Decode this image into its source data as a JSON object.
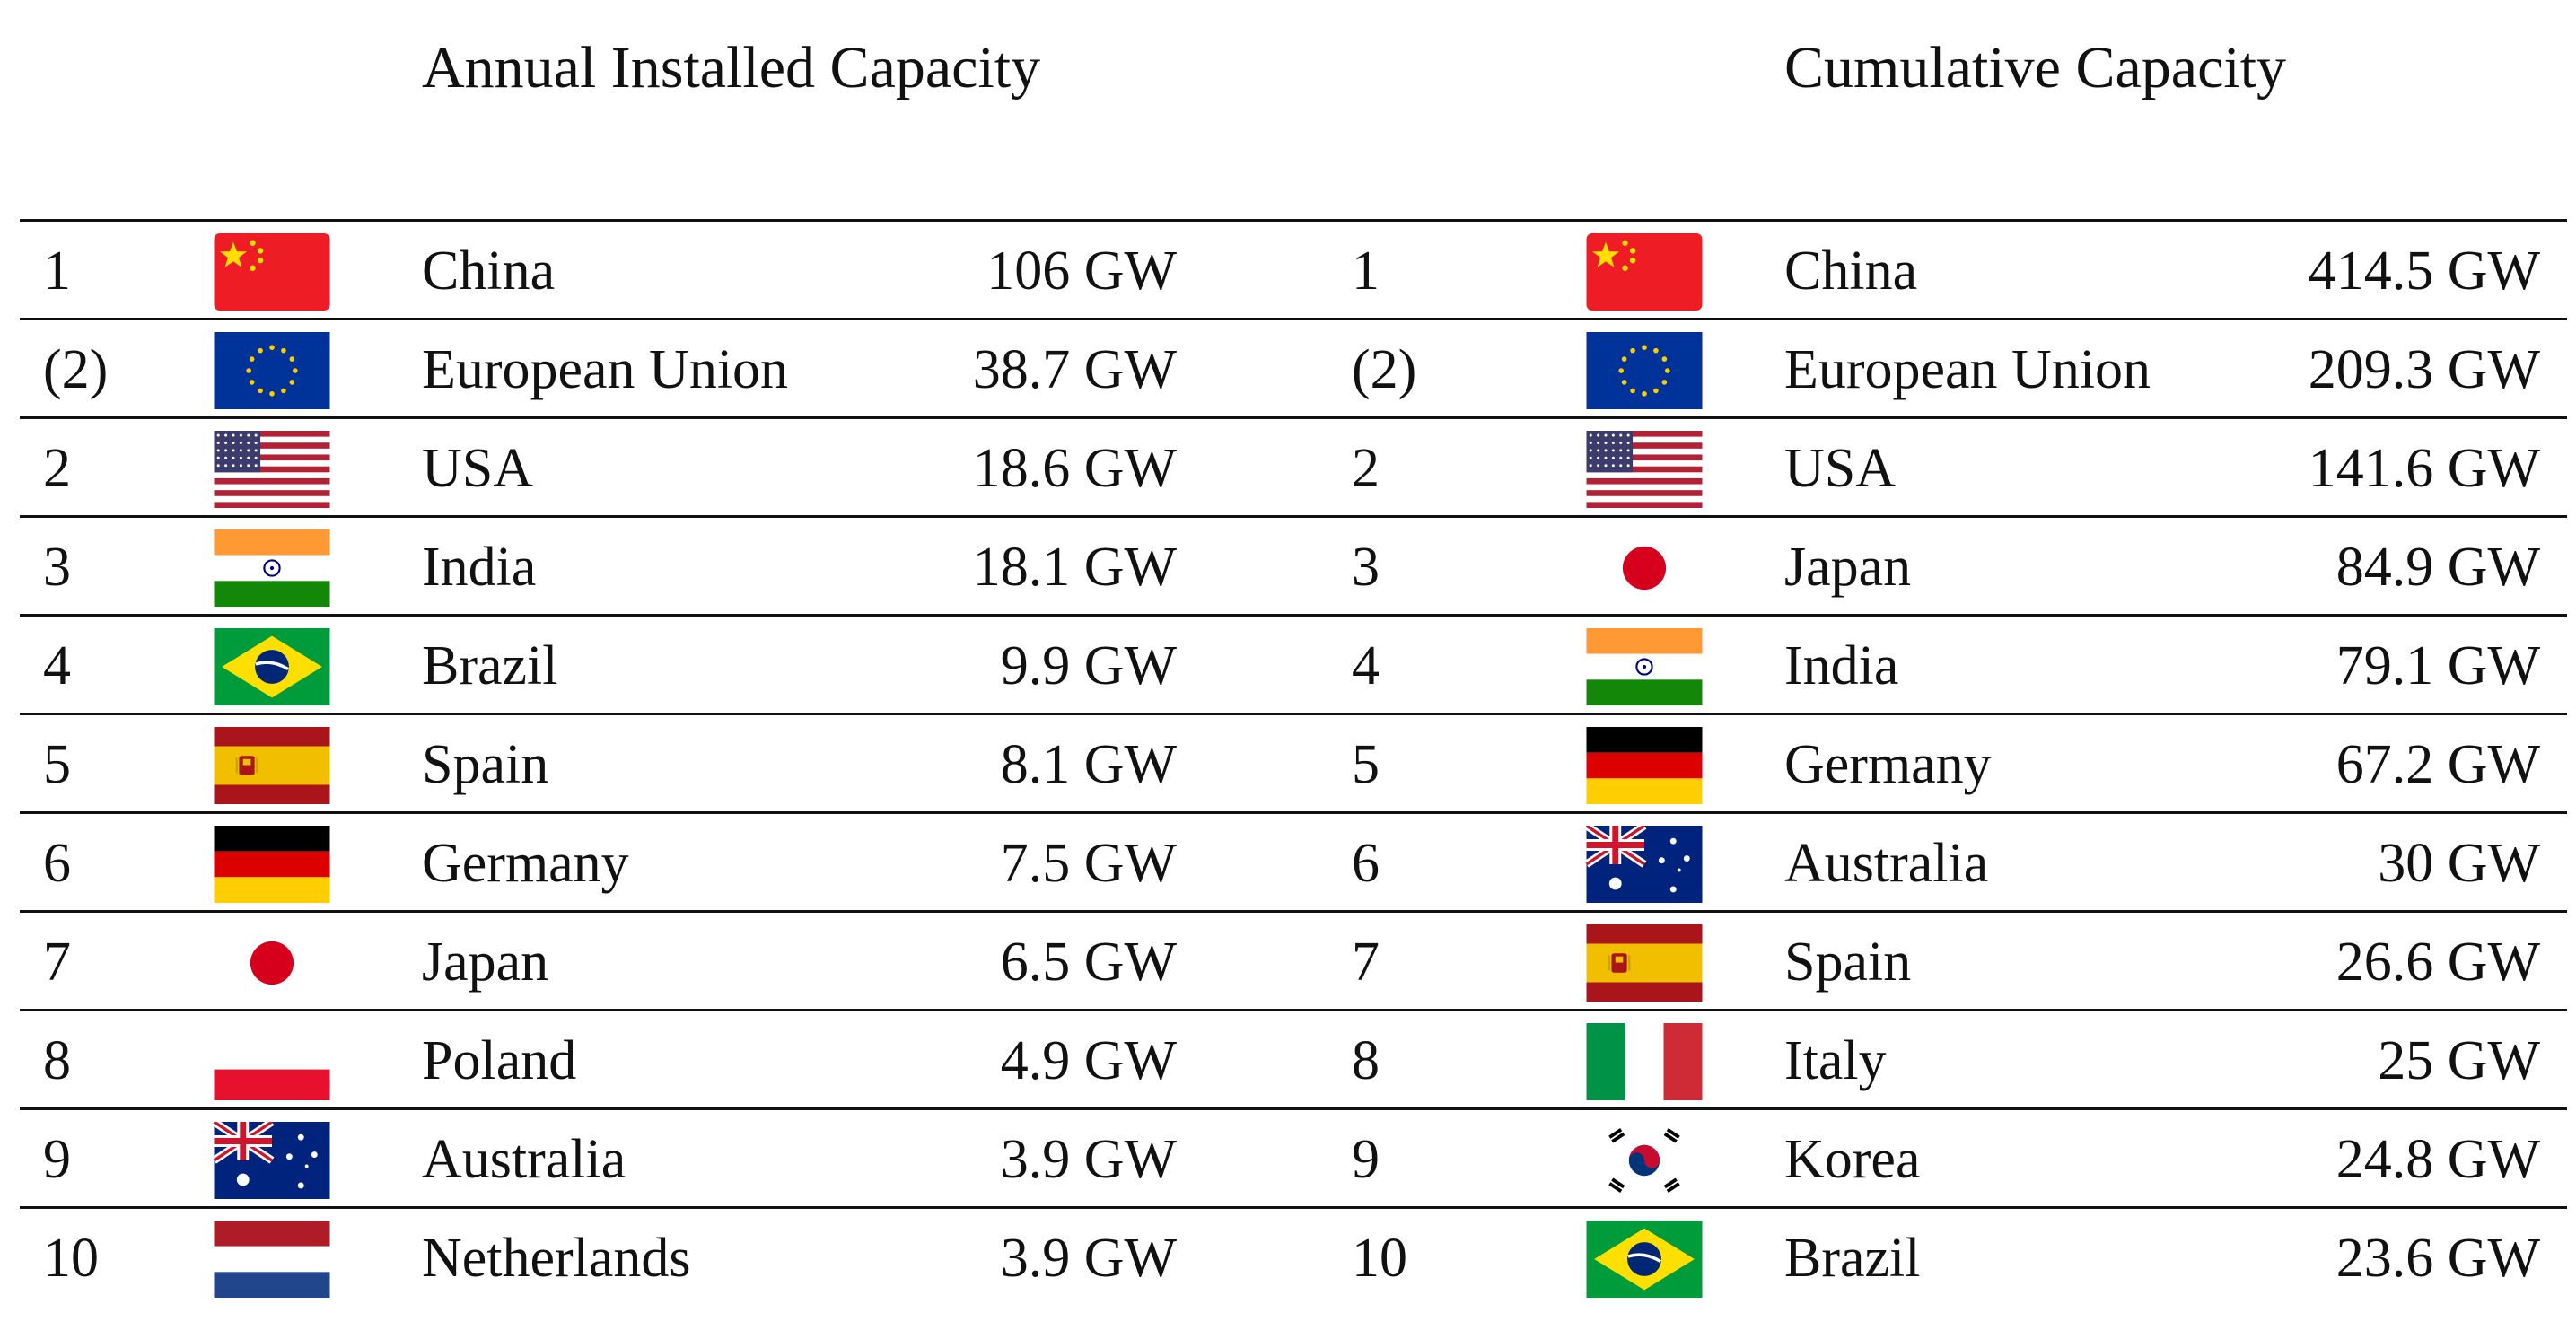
{
  "chart_data": {
    "type": "table",
    "headings": {
      "annual": "Annual Installed Capacity",
      "cumulative": "Cumulative Capacity"
    },
    "annual": [
      {
        "rank": "1",
        "flag": "china-flag",
        "country": "China",
        "value": "106 GW"
      },
      {
        "rank": "(2)",
        "flag": "eu-flag",
        "country": "European Union",
        "value": "38.7 GW"
      },
      {
        "rank": "2",
        "flag": "usa-flag",
        "country": "USA",
        "value": "18.6 GW"
      },
      {
        "rank": "3",
        "flag": "india-flag",
        "country": "India",
        "value": "18.1 GW"
      },
      {
        "rank": "4",
        "flag": "brazil-flag",
        "country": "Brazil",
        "value": "9.9 GW"
      },
      {
        "rank": "5",
        "flag": "spain-flag",
        "country": "Spain",
        "value": "8.1 GW"
      },
      {
        "rank": "6",
        "flag": "germany-flag",
        "country": "Germany",
        "value": "7.5 GW"
      },
      {
        "rank": "7",
        "flag": "japan-flag",
        "country": "Japan",
        "value": "6.5 GW"
      },
      {
        "rank": "8",
        "flag": "poland-flag",
        "country": "Poland",
        "value": "4.9 GW"
      },
      {
        "rank": "9",
        "flag": "australia-flag",
        "country": "Australia",
        "value": "3.9 GW"
      },
      {
        "rank": "10",
        "flag": "netherlands-flag",
        "country": "Netherlands",
        "value": "3.9 GW"
      }
    ],
    "cumulative": [
      {
        "rank": "1",
        "flag": "china-flag",
        "country": "China",
        "value": "414.5 GW"
      },
      {
        "rank": "(2)",
        "flag": "eu-flag",
        "country": "European Union",
        "value": "209.3 GW"
      },
      {
        "rank": "2",
        "flag": "usa-flag",
        "country": "USA",
        "value": "141.6 GW"
      },
      {
        "rank": "3",
        "flag": "japan-flag",
        "country": "Japan",
        "value": "84.9 GW"
      },
      {
        "rank": "4",
        "flag": "india-flag",
        "country": "India",
        "value": "79.1 GW"
      },
      {
        "rank": "5",
        "flag": "germany-flag",
        "country": "Germany",
        "value": "67.2 GW"
      },
      {
        "rank": "6",
        "flag": "australia-flag",
        "country": "Australia",
        "value": "30 GW"
      },
      {
        "rank": "7",
        "flag": "spain-flag",
        "country": "Spain",
        "value": "26.6 GW"
      },
      {
        "rank": "8",
        "flag": "italy-flag",
        "country": "Italy",
        "value": "25 GW"
      },
      {
        "rank": "9",
        "flag": "korea-flag",
        "country": "Korea",
        "value": "24.8 GW"
      },
      {
        "rank": "10",
        "flag": "brazil-flag",
        "country": "Brazil",
        "value": "23.6 GW"
      }
    ]
  }
}
